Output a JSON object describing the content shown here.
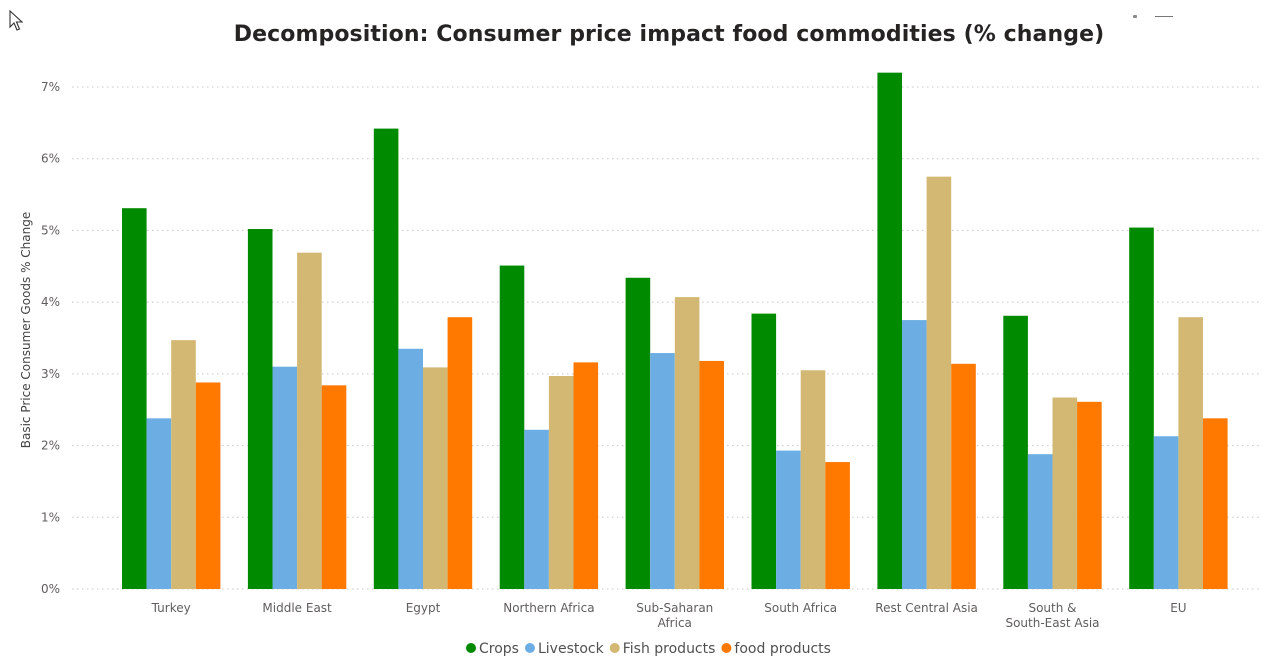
{
  "chart_data": {
    "type": "bar",
    "title": "Decomposition: Consumer price impact food commodities (% change)",
    "xlabel": "",
    "ylabel": "Basic Price Consumer Goods % Change",
    "ylim": [
      0,
      0.07
    ],
    "yticks": [
      "0%",
      "1%",
      "2%",
      "3%",
      "4%",
      "5%",
      "6%",
      "7%"
    ],
    "grid": true,
    "legend_position": "bottom",
    "categories": [
      [
        "Turkey"
      ],
      [
        "Middle East"
      ],
      [
        "Egypt"
      ],
      [
        "Northern Africa"
      ],
      [
        "Sub-Saharan",
        "Africa"
      ],
      [
        "South Africa"
      ],
      [
        "Rest Central Asia"
      ],
      [
        "South &",
        "South-East Asia"
      ],
      [
        "EU"
      ]
    ],
    "series": [
      {
        "name": "Crops",
        "color": "#008a00",
        "values": [
          0.0531,
          0.0502,
          0.0642,
          0.0451,
          0.0434,
          0.0384,
          0.072,
          0.0381,
          0.0504
        ]
      },
      {
        "name": "Livestock",
        "color": "#6caee4",
        "values": [
          0.0238,
          0.031,
          0.0335,
          0.0222,
          0.0329,
          0.0193,
          0.0375,
          0.0188,
          0.0213
        ]
      },
      {
        "name": "Fish products",
        "color": "#d3b873",
        "values": [
          0.0347,
          0.0469,
          0.0309,
          0.0297,
          0.0407,
          0.0305,
          0.0575,
          0.0267,
          0.0379
        ]
      },
      {
        "name": "food products",
        "color": "#ff7800",
        "values": [
          0.0288,
          0.0284,
          0.0379,
          0.0316,
          0.0318,
          0.0177,
          0.0314,
          0.0261,
          0.0238
        ]
      }
    ]
  }
}
